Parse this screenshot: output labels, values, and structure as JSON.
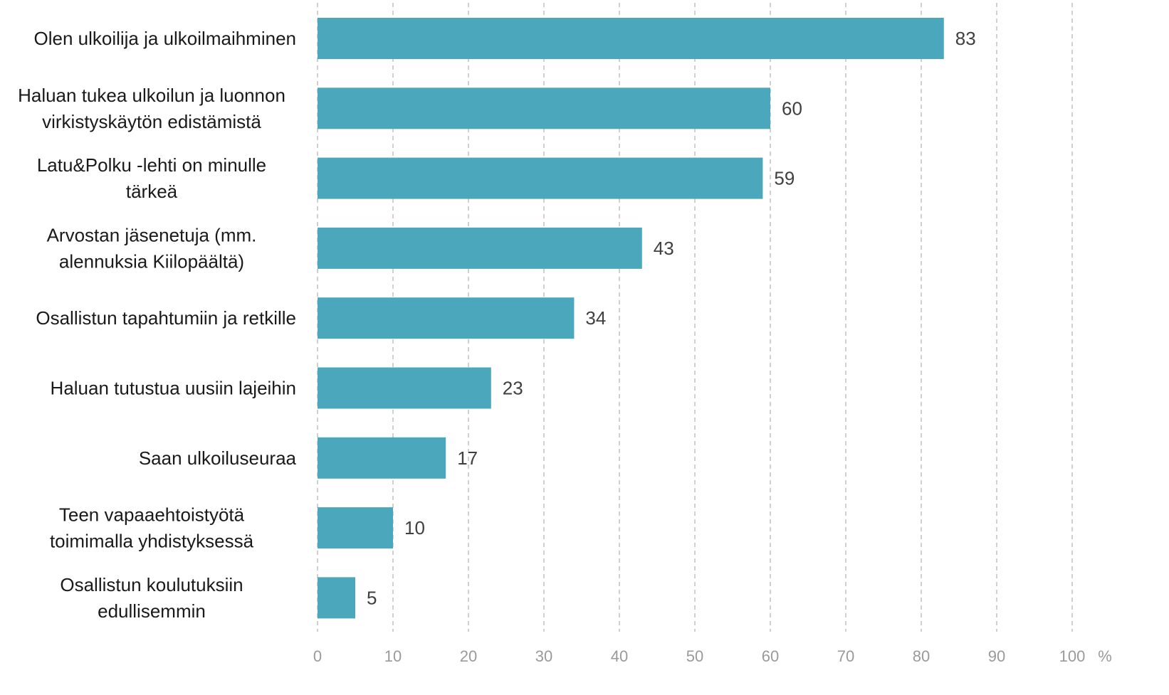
{
  "chart_data": {
    "type": "bar",
    "orientation": "horizontal",
    "categories": [
      "Olen ulkoilija ja ulkoilmaihminen",
      "Haluan tukea ulkoilun ja luonnon virkistyskäytön edistämistä",
      "Latu&Polku -lehti on minulle tärkeä",
      "Arvostan jäsenetuja (mm. alennuksia Kiilopäältä)",
      "Osallistun tapahtumiin ja retkille",
      "Haluan tutustua uusiin lajeihin",
      "Saan ulkoiluseuraa",
      "Teen vapaaehtoistyötä toimimalla yhdistyksessä",
      "Osallistun koulutuksiin edullisemmin"
    ],
    "category_lines": [
      [
        "Olen ulkoilija ja ulkoilmaihminen"
      ],
      [
        "Haluan tukea ulkoilun ja luonnon",
        "virkistyskäytön edistämistä"
      ],
      [
        "Latu&Polku -lehti on minulle",
        "tärkeä"
      ],
      [
        "Arvostan jäsenetuja (mm.",
        "alennuksia Kiilopäältä)"
      ],
      [
        "Osallistun tapahtumiin ja retkille"
      ],
      [
        "Haluan tutustua uusiin lajeihin"
      ],
      [
        "Saan ulkoiluseuraa"
      ],
      [
        "Teen vapaaehtoistyötä",
        "toimimalla yhdistyksessä"
      ],
      [
        "Osallistun koulutuksiin",
        "edullisemmin"
      ]
    ],
    "values": [
      83,
      60,
      59,
      43,
      34,
      23,
      17,
      10,
      5
    ],
    "value_labels": [
      "83",
      "60",
      "59",
      "43",
      "34",
      "23",
      "17",
      "10",
      "5"
    ],
    "xlim": [
      0,
      100
    ],
    "x_ticks": [
      "0",
      "10",
      "20",
      "30",
      "40",
      "50",
      "60",
      "70",
      "80",
      "90",
      "100"
    ],
    "x_unit": "%",
    "grid": "vertical-dashed",
    "bar_color": "#4BA7BC",
    "title": "",
    "xlabel": "",
    "ylabel": ""
  }
}
